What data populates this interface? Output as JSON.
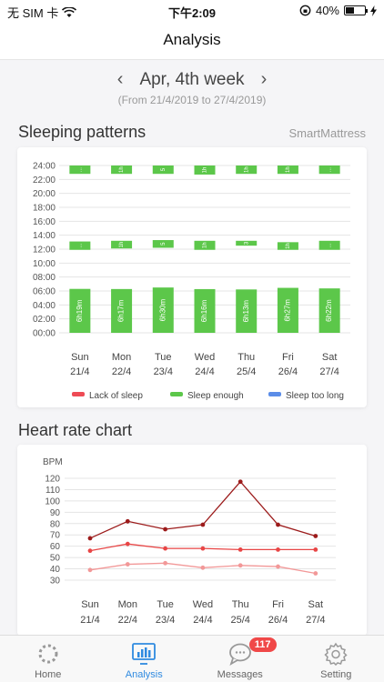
{
  "status": {
    "carrier": "无 SIM 卡",
    "time": "下午2:09",
    "battery": "40%",
    "battery_level": 0.4
  },
  "nav": {
    "title": "Analysis"
  },
  "week": {
    "label": "Apr, 4th week",
    "range": "(From 21/4/2019 to 27/4/2019)"
  },
  "sleep": {
    "title": "Sleeping patterns",
    "source": "SmartMattress",
    "legend": [
      {
        "label": "Lack of sleep",
        "color": "#ee4b55"
      },
      {
        "label": "Sleep enough",
        "color": "#5cc74a"
      },
      {
        "label": "Sleep too long",
        "color": "#5b8de8"
      }
    ]
  },
  "heart": {
    "title": "Heart rate chart"
  },
  "tabs": [
    {
      "label": "Home",
      "icon": "home-ring-icon"
    },
    {
      "label": "Analysis",
      "icon": "analysis-icon"
    },
    {
      "label": "Messages",
      "icon": "message-bubble-icon",
      "badge": "117"
    },
    {
      "label": "Setting",
      "icon": "gear-icon"
    }
  ],
  "chart_data": [
    {
      "type": "bar",
      "ylabel": "",
      "ytick_labels": [
        "00:00",
        "02:00",
        "04:00",
        "06:00",
        "08:00",
        "10:00",
        "12:00",
        "14:00",
        "16:00",
        "18:00",
        "20:00",
        "22:00",
        "24:00"
      ],
      "ylim": [
        0,
        24
      ],
      "categories": [
        "Sun",
        "Mon",
        "Tue",
        "Wed",
        "Thu",
        "Fri",
        "Sat"
      ],
      "category_dates": [
        "21/4",
        "22/4",
        "23/4",
        "24/4",
        "25/4",
        "26/4",
        "27/4"
      ],
      "segments": [
        [
          {
            "start": 0,
            "end": 6.3,
            "label": "6h19m"
          },
          {
            "start": 11.9,
            "end": 13.1,
            "label": "..."
          },
          {
            "start": 22.8,
            "end": 24,
            "label": "..."
          }
        ],
        [
          {
            "start": 0,
            "end": 6.28,
            "label": "6h17m"
          },
          {
            "start": 12.1,
            "end": 13.2,
            "label": "1h"
          },
          {
            "start": 22.8,
            "end": 24,
            "label": "1h"
          }
        ],
        [
          {
            "start": 0,
            "end": 6.5,
            "label": "6h30m"
          },
          {
            "start": 12.2,
            "end": 13.3,
            "label": "5"
          },
          {
            "start": 22.8,
            "end": 24,
            "label": "5"
          }
        ],
        [
          {
            "start": 0,
            "end": 6.27,
            "label": "6h16m"
          },
          {
            "start": 11.9,
            "end": 13.2,
            "label": "1h"
          },
          {
            "start": 22.7,
            "end": 24,
            "label": "1h"
          }
        ],
        [
          {
            "start": 0,
            "end": 6.22,
            "label": "6h13m"
          },
          {
            "start": 12.5,
            "end": 13.2,
            "label": "3"
          },
          {
            "start": 22.8,
            "end": 24,
            "label": "1h"
          }
        ],
        [
          {
            "start": 0,
            "end": 6.45,
            "label": "6h27m"
          },
          {
            "start": 11.9,
            "end": 13.0,
            "label": "1h"
          },
          {
            "start": 22.8,
            "end": 24,
            "label": "1h"
          }
        ],
        [
          {
            "start": 0,
            "end": 6.37,
            "label": "6h22m"
          },
          {
            "start": 11.9,
            "end": 13.2,
            "label": "..."
          },
          {
            "start": 22.8,
            "end": 24,
            "label": "..."
          }
        ]
      ]
    },
    {
      "type": "line",
      "ylabel": "BPM",
      "ylim": [
        30,
        120
      ],
      "yticks": [
        30,
        40,
        50,
        60,
        70,
        80,
        90,
        100,
        110,
        120
      ],
      "categories": [
        "Sun",
        "Mon",
        "Tue",
        "Wed",
        "Thu",
        "Fri",
        "Sat"
      ],
      "category_dates": [
        "21/4",
        "22/4",
        "23/4",
        "24/4",
        "25/4",
        "26/4",
        "27/4"
      ],
      "series": [
        {
          "values": [
            67,
            82,
            75,
            79,
            117,
            79,
            69
          ],
          "color": "#9c1b1b"
        },
        {
          "values": [
            56,
            62,
            58,
            58,
            57,
            57,
            57
          ],
          "color": "#e84545"
        },
        {
          "values": [
            39,
            44,
            45,
            41,
            43,
            42,
            36
          ],
          "color": "#f29898"
        }
      ]
    }
  ]
}
